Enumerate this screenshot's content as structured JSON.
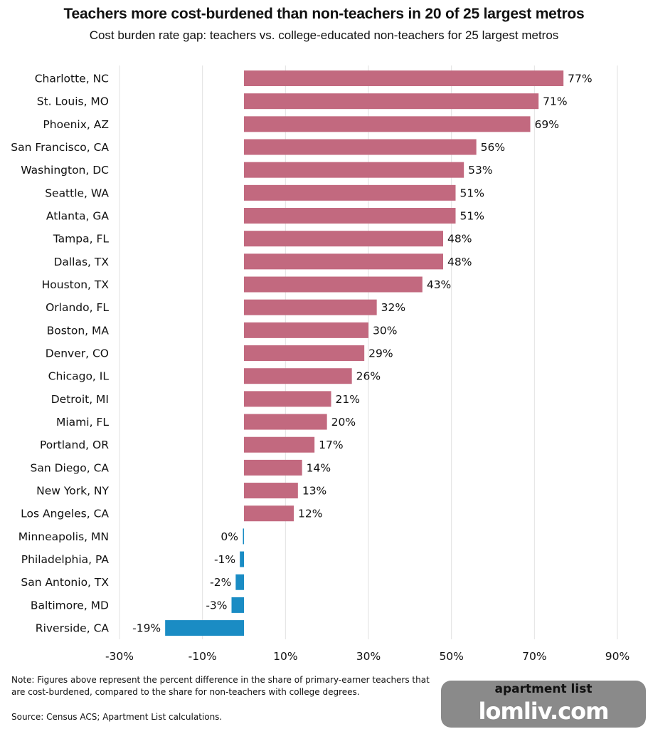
{
  "chart_data": {
    "type": "bar",
    "orientation": "horizontal",
    "title": "Teachers more cost-burdened than non-teachers in 20 of 25 largest metros",
    "subtitle": "Cost burden rate gap: teachers vs. college-educated non-teachers for 25 largest metros",
    "categories": [
      "Charlotte, NC",
      "St. Louis, MO",
      "Phoenix, AZ",
      "San Francisco, CA",
      "Washington, DC",
      "Seattle, WA",
      "Atlanta, GA",
      "Tampa, FL",
      "Dallas, TX",
      "Houston, TX",
      "Orlando, FL",
      "Boston, MA",
      "Denver, CO",
      "Chicago, IL",
      "Detroit, MI",
      "Miami, FL",
      "Portland, OR",
      "San Diego, CA",
      "New York, NY",
      "Los Angeles, CA",
      "Minneapolis, MN",
      "Philadelphia, PA",
      "San Antonio, TX",
      "Baltimore, MD",
      "Riverside, CA"
    ],
    "values": [
      77,
      71,
      69,
      56,
      53,
      51,
      51,
      48,
      48,
      43,
      32,
      30,
      29,
      26,
      21,
      20,
      17,
      14,
      13,
      12,
      0,
      -1,
      -2,
      -3,
      -19
    ],
    "data_labels": [
      "77%",
      "71%",
      "69%",
      "56%",
      "53%",
      "51%",
      "51%",
      "48%",
      "48%",
      "43%",
      "32%",
      "30%",
      "29%",
      "26%",
      "21%",
      "20%",
      "17%",
      "14%",
      "13%",
      "12%",
      "0%",
      "-1%",
      "-2%",
      "-3%",
      "-19%"
    ],
    "xlim": [
      -30,
      90
    ],
    "xticks": [
      -30,
      -10,
      10,
      30,
      50,
      70,
      90
    ],
    "xtick_labels": [
      "-30%",
      "-10%",
      "10%",
      "30%",
      "50%",
      "70%",
      "90%"
    ],
    "grid": true,
    "colors": {
      "positive": "#c2697f",
      "negative": "#1a8cc4"
    }
  },
  "note": "Note: Figures above represent the percent difference in the share of primary-earner teachers that are cost-burdened, compared to the share for non-teachers with college degrees.",
  "source": "Source: Census ACS; Apartment List calculations.",
  "logo": {
    "brand": "apartment list",
    "watermark": "lomliv.com"
  }
}
